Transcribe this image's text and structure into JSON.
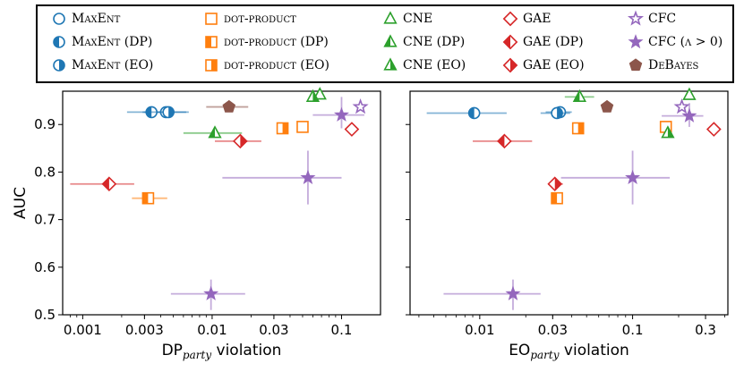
{
  "legend": {
    "entries": [
      {
        "label": "MaxEnt",
        "method": "MaxEnt",
        "variant": "base"
      },
      {
        "label": "MaxEnt (DP)",
        "method": "MaxEnt",
        "variant": "dp"
      },
      {
        "label": "MaxEnt (EO)",
        "method": "MaxEnt",
        "variant": "eo"
      },
      {
        "label": "dot-product",
        "method": "dot-product",
        "variant": "base"
      },
      {
        "label": "dot-product (DP)",
        "method": "dot-product",
        "variant": "dp"
      },
      {
        "label": "dot-product (EO)",
        "method": "dot-product",
        "variant": "eo"
      },
      {
        "label": "CNE",
        "method": "CNE",
        "variant": "base"
      },
      {
        "label": "CNE (DP)",
        "method": "CNE",
        "variant": "dp"
      },
      {
        "label": "CNE (EO)",
        "method": "CNE",
        "variant": "eo"
      },
      {
        "label": "GAE",
        "method": "GAE",
        "variant": "base"
      },
      {
        "label": "GAE (DP)",
        "method": "GAE",
        "variant": "dp"
      },
      {
        "label": "GAE (EO)",
        "method": "GAE",
        "variant": "eo"
      },
      {
        "label": "CFC",
        "method": "CFC",
        "variant": "base"
      },
      {
        "label": "CFC (λ > 0)",
        "method": "CFC",
        "variant": "dp"
      },
      {
        "label": "DeBayes",
        "method": "DeBayes",
        "variant": "base"
      }
    ]
  },
  "colors": {
    "MaxEnt": "#1f77b4",
    "dot-product": "#ff7f0e",
    "CNE": "#2ca02c",
    "GAE": "#d62728",
    "CFC": "#9467bd",
    "DeBayes": "#8c564b"
  },
  "chart_data": [
    {
      "type": "scatter",
      "xscale": "log",
      "xlabel_main": "DP",
      "xlabel_sub": "party",
      "xlabel_tail": " violation",
      "ylabel": "AUC",
      "xlim": [
        0.0007,
        0.2
      ],
      "ylim": [
        0.5,
        0.97
      ],
      "xticks": [
        {
          "value": 0.001,
          "label": "0.001"
        },
        {
          "value": 0.003,
          "label": "0.003"
        },
        {
          "value": 0.01,
          "label": "0.01"
        },
        {
          "value": 0.03,
          "label": "0.03"
        },
        {
          "value": 0.1,
          "label": "0.1"
        }
      ],
      "yticks": [
        {
          "value": 0.5,
          "label": "0.5"
        },
        {
          "value": 0.6,
          "label": "0.6"
        },
        {
          "value": 0.7,
          "label": "0.7"
        },
        {
          "value": 0.8,
          "label": "0.8"
        },
        {
          "value": 0.9,
          "label": "0.9"
        }
      ],
      "points": [
        {
          "method": "MaxEnt",
          "variant": "base",
          "x": 0.0044,
          "y": 0.926,
          "xerr": [
            0.0029,
            0.0063
          ],
          "yerr": [
            0.926,
            0.926
          ]
        },
        {
          "method": "MaxEnt",
          "variant": "dp",
          "x": 0.0034,
          "y": 0.926,
          "xerr": [
            0.0022,
            0.0049
          ],
          "yerr": [
            0.926,
            0.926
          ]
        },
        {
          "method": "MaxEnt",
          "variant": "eo",
          "x": 0.0046,
          "y": 0.926,
          "xerr": [
            0.003,
            0.0066
          ],
          "yerr": [
            0.926,
            0.926
          ]
        },
        {
          "method": "dot-product",
          "variant": "base",
          "x": 0.05,
          "y": 0.895,
          "xerr": [
            0.05,
            0.05
          ],
          "yerr": [
            0.895,
            0.895
          ]
        },
        {
          "method": "dot-product",
          "variant": "dp",
          "x": 0.0032,
          "y": 0.745,
          "xerr": [
            0.0024,
            0.0045
          ],
          "yerr": [
            0.745,
            0.745
          ]
        },
        {
          "method": "dot-product",
          "variant": "eo",
          "x": 0.035,
          "y": 0.892,
          "xerr": [
            0.035,
            0.035
          ],
          "yerr": [
            0.892,
            0.892
          ]
        },
        {
          "method": "CNE",
          "variant": "base",
          "x": 0.068,
          "y": 0.963,
          "xerr": [
            0.068,
            0.068
          ],
          "yerr": [
            0.963,
            0.963
          ]
        },
        {
          "method": "CNE",
          "variant": "dp",
          "x": 0.0105,
          "y": 0.882,
          "xerr": [
            0.006,
            0.017
          ],
          "yerr": [
            0.882,
            0.882
          ]
        },
        {
          "method": "CNE",
          "variant": "eo",
          "x": 0.06,
          "y": 0.958,
          "xerr": [
            0.06,
            0.06
          ],
          "yerr": [
            0.958,
            0.958
          ]
        },
        {
          "method": "GAE",
          "variant": "base",
          "x": 0.12,
          "y": 0.89,
          "xerr": [
            0.12,
            0.12
          ],
          "yerr": [
            0.89,
            0.89
          ]
        },
        {
          "method": "GAE",
          "variant": "dp",
          "x": 0.0016,
          "y": 0.775,
          "xerr": [
            0.0008,
            0.0025
          ],
          "yerr": [
            0.775,
            0.775
          ]
        },
        {
          "method": "GAE",
          "variant": "eo",
          "x": 0.0165,
          "y": 0.865,
          "xerr": [
            0.0105,
            0.024
          ],
          "yerr": [
            0.865,
            0.865
          ]
        },
        {
          "method": "CFC",
          "variant": "base",
          "x": 0.14,
          "y": 0.937,
          "xerr": [
            0.14,
            0.14
          ],
          "yerr": [
            0.937,
            0.937
          ]
        },
        {
          "method": "CFC",
          "variant": "dp",
          "x": 0.055,
          "y": 0.788,
          "xerr": [
            0.012,
            0.1
          ],
          "yerr": [
            0.732,
            0.845
          ]
        },
        {
          "method": "CFC",
          "variant": "dp",
          "x": 0.0098,
          "y": 0.544,
          "xerr": [
            0.0048,
            0.018
          ],
          "yerr": [
            0.51,
            0.574
          ]
        },
        {
          "method": "CFC",
          "variant": "dp",
          "x": 0.1,
          "y": 0.92,
          "xerr": [
            0.06,
            0.15
          ],
          "yerr": [
            0.892,
            0.958
          ]
        },
        {
          "method": "DeBayes",
          "variant": "base",
          "x": 0.0135,
          "y": 0.937,
          "xerr": [
            0.009,
            0.019
          ],
          "yerr": [
            0.937,
            0.937
          ]
        }
      ]
    },
    {
      "type": "scatter",
      "xscale": "log",
      "xlabel_main": "EO",
      "xlabel_sub": "party",
      "xlabel_tail": " violation",
      "ylabel": "",
      "xlim": [
        0.0035,
        0.42
      ],
      "ylim": [
        0.5,
        0.97
      ],
      "xticks": [
        {
          "value": 0.01,
          "label": "0.01"
        },
        {
          "value": 0.03,
          "label": "0.03"
        },
        {
          "value": 0.1,
          "label": "0.1"
        },
        {
          "value": 0.3,
          "label": "0.3"
        }
      ],
      "yticks": [
        {
          "value": 0.5,
          "label": ""
        },
        {
          "value": 0.6,
          "label": ""
        },
        {
          "value": 0.7,
          "label": ""
        },
        {
          "value": 0.8,
          "label": ""
        },
        {
          "value": 0.9,
          "label": ""
        }
      ],
      "points": [
        {
          "method": "MaxEnt",
          "variant": "base",
          "x": 0.0335,
          "y": 0.926,
          "xerr": [
            0.027,
            0.04
          ],
          "yerr": [
            0.926,
            0.926
          ]
        },
        {
          "method": "MaxEnt",
          "variant": "dp",
          "x": 0.0092,
          "y": 0.924,
          "xerr": [
            0.0045,
            0.015
          ],
          "yerr": [
            0.924,
            0.924
          ]
        },
        {
          "method": "MaxEnt",
          "variant": "eo",
          "x": 0.032,
          "y": 0.924,
          "xerr": [
            0.025,
            0.039
          ],
          "yerr": [
            0.924,
            0.924
          ]
        },
        {
          "method": "dot-product",
          "variant": "base",
          "x": 0.165,
          "y": 0.895,
          "xerr": [
            0.165,
            0.165
          ],
          "yerr": [
            0.895,
            0.895
          ]
        },
        {
          "method": "dot-product",
          "variant": "dp",
          "x": 0.032,
          "y": 0.745,
          "xerr": [
            0.032,
            0.032
          ],
          "yerr": [
            0.745,
            0.745
          ]
        },
        {
          "method": "dot-product",
          "variant": "eo",
          "x": 0.044,
          "y": 0.892,
          "xerr": [
            0.044,
            0.044
          ],
          "yerr": [
            0.892,
            0.892
          ]
        },
        {
          "method": "CNE",
          "variant": "base",
          "x": 0.235,
          "y": 0.962,
          "xerr": [
            0.235,
            0.235
          ],
          "yerr": [
            0.962,
            0.962
          ]
        },
        {
          "method": "CNE",
          "variant": "dp",
          "x": 0.045,
          "y": 0.958,
          "xerr": [
            0.036,
            0.056
          ],
          "yerr": [
            0.958,
            0.958
          ]
        },
        {
          "method": "CNE",
          "variant": "eo",
          "x": 0.17,
          "y": 0.882,
          "xerr": [
            0.17,
            0.17
          ],
          "yerr": [
            0.882,
            0.882
          ]
        },
        {
          "method": "GAE",
          "variant": "base",
          "x": 0.34,
          "y": 0.89,
          "xerr": [
            0.34,
            0.34
          ],
          "yerr": [
            0.89,
            0.89
          ]
        },
        {
          "method": "GAE",
          "variant": "dp",
          "x": 0.0145,
          "y": 0.865,
          "xerr": [
            0.009,
            0.022
          ],
          "yerr": [
            0.865,
            0.865
          ]
        },
        {
          "method": "GAE",
          "variant": "eo",
          "x": 0.031,
          "y": 0.775,
          "xerr": [
            0.028,
            0.035
          ],
          "yerr": [
            0.775,
            0.775
          ]
        },
        {
          "method": "CFC",
          "variant": "base",
          "x": 0.21,
          "y": 0.937,
          "xerr": [
            0.21,
            0.21
          ],
          "yerr": [
            0.937,
            0.937
          ]
        },
        {
          "method": "CFC",
          "variant": "dp",
          "x": 0.1,
          "y": 0.788,
          "xerr": [
            0.034,
            0.175
          ],
          "yerr": [
            0.732,
            0.845
          ]
        },
        {
          "method": "CFC",
          "variant": "dp",
          "x": 0.0165,
          "y": 0.544,
          "xerr": [
            0.0058,
            0.025
          ],
          "yerr": [
            0.51,
            0.574
          ]
        },
        {
          "method": "CFC",
          "variant": "dp",
          "x": 0.235,
          "y": 0.918,
          "xerr": [
            0.155,
            0.29
          ],
          "yerr": [
            0.895,
            0.945
          ]
        },
        {
          "method": "DeBayes",
          "variant": "base",
          "x": 0.068,
          "y": 0.937,
          "xerr": [
            0.068,
            0.068
          ],
          "yerr": [
            0.937,
            0.937
          ]
        }
      ]
    }
  ]
}
